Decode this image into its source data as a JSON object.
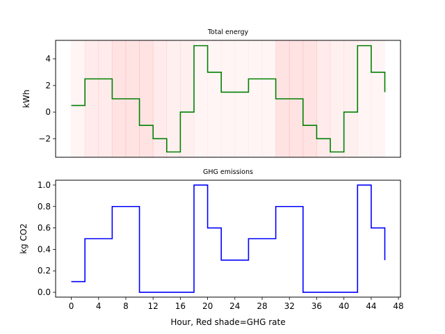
{
  "chart_data": [
    {
      "type": "line",
      "subtype": "step-post",
      "title": "Total energy",
      "xlabel": "",
      "ylabel": "kWh",
      "xlim": [
        -2.3,
        48.3
      ],
      "ylim": [
        -3.4,
        5.4
      ],
      "yticks": [
        -2,
        0,
        2,
        4
      ],
      "show_xticks": false,
      "line_color": "#008000",
      "x": [
        0,
        2,
        4,
        6,
        8,
        10,
        12,
        14,
        16,
        18,
        20,
        22,
        24,
        26,
        28,
        30,
        32,
        34,
        36,
        38,
        40,
        42,
        44,
        46
      ],
      "values": [
        0.5,
        2.5,
        2.5,
        1,
        1,
        -1,
        -2,
        -3,
        0,
        5,
        3,
        1.5,
        1.5,
        2.5,
        2.5,
        1,
        1,
        -1,
        -2,
        -3,
        0,
        5,
        3,
        1.5
      ],
      "shade_color": "#ff0000",
      "shade_label": "GHG rate",
      "shade_intervals": [
        {
          "start": 0,
          "end": 2,
          "rate": 0.1
        },
        {
          "start": 2,
          "end": 4,
          "rate": 0.5
        },
        {
          "start": 4,
          "end": 6,
          "rate": 0.5
        },
        {
          "start": 6,
          "end": 8,
          "rate": 0.8
        },
        {
          "start": 8,
          "end": 10,
          "rate": 0.8
        },
        {
          "start": 10,
          "end": 12,
          "rate": 0.8
        },
        {
          "start": 12,
          "end": 14,
          "rate": 0.5
        },
        {
          "start": 14,
          "end": 16,
          "rate": 0.3
        },
        {
          "start": 16,
          "end": 18,
          "rate": 0.3
        },
        {
          "start": 18,
          "end": 20,
          "rate": 0.1
        },
        {
          "start": 20,
          "end": 22,
          "rate": 0.1
        },
        {
          "start": 22,
          "end": 24,
          "rate": 0.1
        },
        {
          "start": 24,
          "end": 26,
          "rate": 0.1
        },
        {
          "start": 26,
          "end": 28,
          "rate": 0.1
        },
        {
          "start": 28,
          "end": 30,
          "rate": 0.1
        },
        {
          "start": 30,
          "end": 32,
          "rate": 0.8
        },
        {
          "start": 32,
          "end": 34,
          "rate": 0.8
        },
        {
          "start": 34,
          "end": 36,
          "rate": 0.8
        },
        {
          "start": 36,
          "end": 38,
          "rate": 0.5
        },
        {
          "start": 38,
          "end": 40,
          "rate": 0.3
        },
        {
          "start": 40,
          "end": 42,
          "rate": 0.3
        },
        {
          "start": 42,
          "end": 44,
          "rate": 0.1
        },
        {
          "start": 44,
          "end": 46,
          "rate": 0.1
        }
      ]
    },
    {
      "type": "line",
      "subtype": "step-post",
      "title": "GHG emissions",
      "xlabel": "Hour, Red shade=GHG rate",
      "ylabel": "kg CO2",
      "xlim": [
        -2.3,
        48.3
      ],
      "ylim": [
        -0.045,
        1.045
      ],
      "xticks": [
        0,
        4,
        8,
        12,
        16,
        20,
        24,
        28,
        32,
        36,
        40,
        44,
        48
      ],
      "yticks": [
        0.0,
        0.2,
        0.4,
        0.6,
        0.8,
        1.0
      ],
      "ytick_labels": [
        "0.0",
        "0.2",
        "0.4",
        "0.6",
        "0.8",
        "1.0"
      ],
      "line_color": "#0000ff",
      "x": [
        0,
        2,
        4,
        6,
        8,
        10,
        12,
        14,
        16,
        18,
        20,
        22,
        24,
        26,
        28,
        30,
        32,
        34,
        36,
        38,
        40,
        42,
        44,
        46
      ],
      "values": [
        0.1,
        0.5,
        0.5,
        0.8,
        0.8,
        0,
        0,
        0,
        0,
        1.0,
        0.6,
        0.3,
        0.3,
        0.5,
        0.5,
        0.8,
        0.8,
        0,
        0,
        0,
        0,
        1.0,
        0.6,
        0.3
      ]
    }
  ]
}
